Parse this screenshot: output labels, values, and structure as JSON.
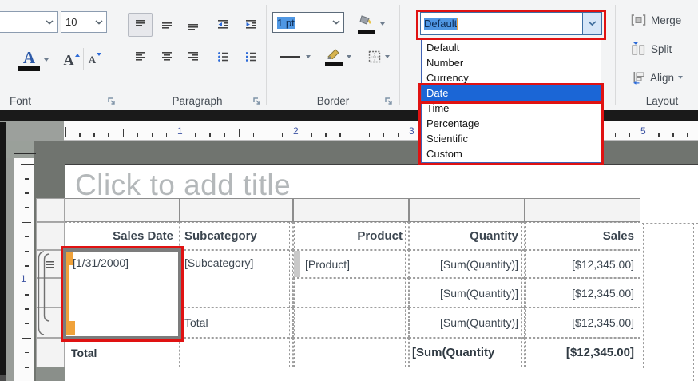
{
  "ribbon": {
    "font": {
      "group_label": "Font",
      "font_size_value": "10",
      "color_button_glyph": "A",
      "grow_button_glyph": "A",
      "shrink_button_glyph": "A"
    },
    "paragraph": {
      "group_label": "Paragraph"
    },
    "border": {
      "group_label": "Border",
      "line_width_value": "1 pt"
    },
    "number_format": {
      "selected_value": "Default",
      "options": [
        "Default",
        "Number",
        "Currency",
        "Date",
        "Time",
        "Percentage",
        "Scientific",
        "Custom"
      ],
      "highlighted_option": "Date"
    },
    "layout": {
      "group_label": "Layout",
      "merge_label": "Merge",
      "split_label": "Split",
      "align_label": "Align"
    }
  },
  "rulers": {
    "horizontal_numbers": [
      {
        "label": "1",
        "inch": 1
      },
      {
        "label": "2",
        "inch": 2
      },
      {
        "label": "3",
        "inch": 3
      },
      {
        "label": "5",
        "inch": 5
      }
    ],
    "vertical_numbers": [
      {
        "label": "1",
        "inch": 1
      }
    ]
  },
  "canvas": {
    "title_placeholder": "Click to add title",
    "table": {
      "headers": [
        "Sales Date",
        "Subcategory",
        "Product",
        "Quantity",
        "Sales"
      ],
      "cells": {
        "sales_date": "[1/31/2000]",
        "subcategory": "[Subcategory]",
        "product": "[Product]",
        "quantity": "[Sum(Quantity)]",
        "sales": "[$12,345.00]",
        "subcategory_total_label": "Total",
        "grand_total_label": "Total",
        "grand_total_quantity": "[Sum(Quantity",
        "grand_total_sales": "[$12,345.00]"
      }
    }
  },
  "colors": {
    "annotation_red": "#e01212",
    "selection_blue": "#1b66d6",
    "accent_orange": "#f0a23a"
  }
}
